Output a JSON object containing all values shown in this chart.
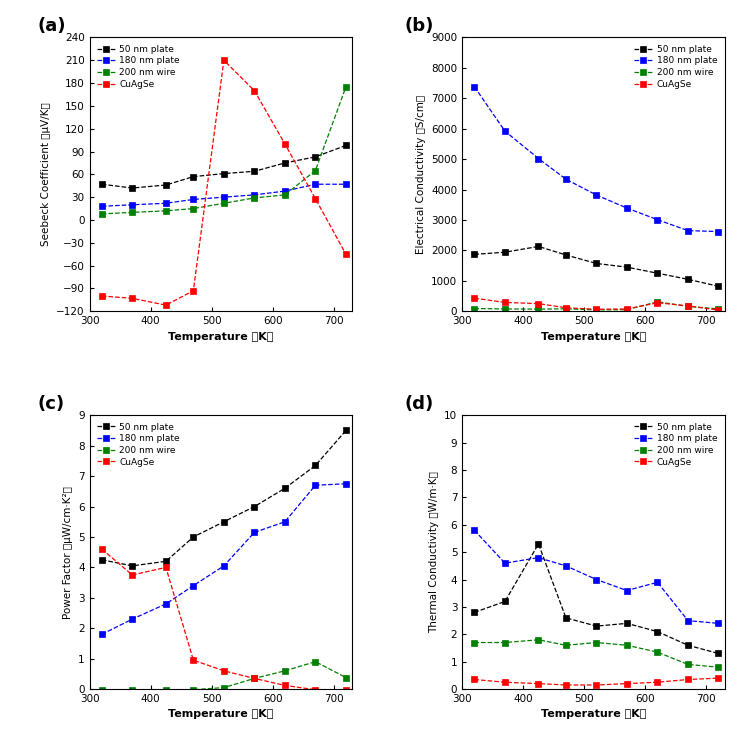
{
  "temp_a": [
    320,
    370,
    425,
    470,
    520,
    570,
    620,
    670,
    720
  ],
  "seebeck_50nm": [
    47,
    42,
    46,
    57,
    61,
    64,
    75,
    83,
    98
  ],
  "seebeck_180nm": [
    18,
    20,
    22,
    27,
    30,
    33,
    38,
    47,
    47
  ],
  "seebeck_200nm": [
    8,
    10,
    12,
    15,
    22,
    29,
    33,
    65,
    175
  ],
  "seebeck_cuagse": [
    -100,
    -103,
    -112,
    -93,
    210,
    170,
    100,
    28,
    -45
  ],
  "temp_b": [
    320,
    370,
    425,
    470,
    520,
    570,
    620,
    670,
    720
  ],
  "elec_50nm": [
    1870,
    1940,
    2130,
    1850,
    1570,
    1450,
    1250,
    1050,
    820
  ],
  "elec_180nm": [
    7380,
    5920,
    5020,
    4340,
    3820,
    3390,
    3010,
    2650,
    2620
  ],
  "elec_200nm": [
    90,
    75,
    70,
    80,
    45,
    50,
    310,
    160,
    75
  ],
  "elec_cuagse": [
    430,
    290,
    250,
    115,
    65,
    75,
    280,
    175,
    40
  ],
  "temp_c": [
    320,
    370,
    425,
    470,
    520,
    570,
    620,
    670,
    720
  ],
  "pf_50nm": [
    4.25,
    4.05,
    4.2,
    5.0,
    5.5,
    6.0,
    6.6,
    7.35,
    8.5
  ],
  "pf_180nm": [
    1.8,
    2.3,
    2.8,
    3.4,
    4.05,
    5.15,
    5.5,
    6.7,
    6.75
  ],
  "pf_200nm": [
    -0.02,
    -0.02,
    -0.02,
    -0.02,
    0.05,
    0.35,
    0.6,
    0.9,
    0.38
  ],
  "pf_cuagse": [
    4.6,
    3.75,
    4.0,
    0.95,
    0.6,
    0.35,
    0.12,
    -0.02,
    -0.02
  ],
  "temp_d": [
    320,
    370,
    425,
    470,
    520,
    570,
    620,
    670,
    720
  ],
  "tc_50nm": [
    2.8,
    3.2,
    5.3,
    2.6,
    2.3,
    2.4,
    2.1,
    1.6,
    1.3
  ],
  "tc_180nm": [
    5.8,
    4.6,
    4.8,
    4.5,
    4.0,
    3.6,
    3.9,
    2.5,
    2.4
  ],
  "tc_200nm": [
    1.7,
    1.7,
    1.8,
    1.6,
    1.7,
    1.6,
    1.35,
    0.9,
    0.8
  ],
  "tc_cuagse": [
    0.35,
    0.25,
    0.2,
    0.15,
    0.15,
    0.2,
    0.25,
    0.35,
    0.4
  ],
  "color_50nm": "black",
  "color_180nm": "blue",
  "color_200nm": "green",
  "color_cuagse": "red",
  "label_50nm": "50 nm plate",
  "label_180nm": "180 nm plate",
  "label_200nm": "200 nm wire",
  "label_cuagse": "CuAgSe",
  "panel_labels": [
    "(a)",
    "(b)",
    "(c)",
    "(d)"
  ],
  "ylabel_a": "Seebeck Coefficient （μV/K）",
  "ylabel_b": "Electrical Conductivity （S/cm）",
  "ylabel_c": "Power Factor （μW/cm·K²）",
  "ylabel_d": "Thermal Conductivity （W/m·K）",
  "xlabel": "Temperature （K）",
  "ylim_a": [
    -120,
    240
  ],
  "ylim_b": [
    0,
    9000
  ],
  "ylim_c": [
    0,
    9
  ],
  "ylim_d": [
    0,
    10
  ],
  "xlim": [
    300,
    730
  ],
  "yticks_a": [
    -120,
    -90,
    -60,
    -30,
    0,
    30,
    60,
    90,
    120,
    150,
    180,
    210,
    240
  ],
  "yticks_b": [
    0,
    1000,
    2000,
    3000,
    4000,
    5000,
    6000,
    7000,
    8000,
    9000
  ],
  "yticks_c": [
    0,
    1,
    2,
    3,
    4,
    5,
    6,
    7,
    8,
    9
  ],
  "yticks_d": [
    0,
    1,
    2,
    3,
    4,
    5,
    6,
    7,
    8,
    9,
    10
  ],
  "xticks": [
    300,
    400,
    500,
    600,
    700
  ]
}
